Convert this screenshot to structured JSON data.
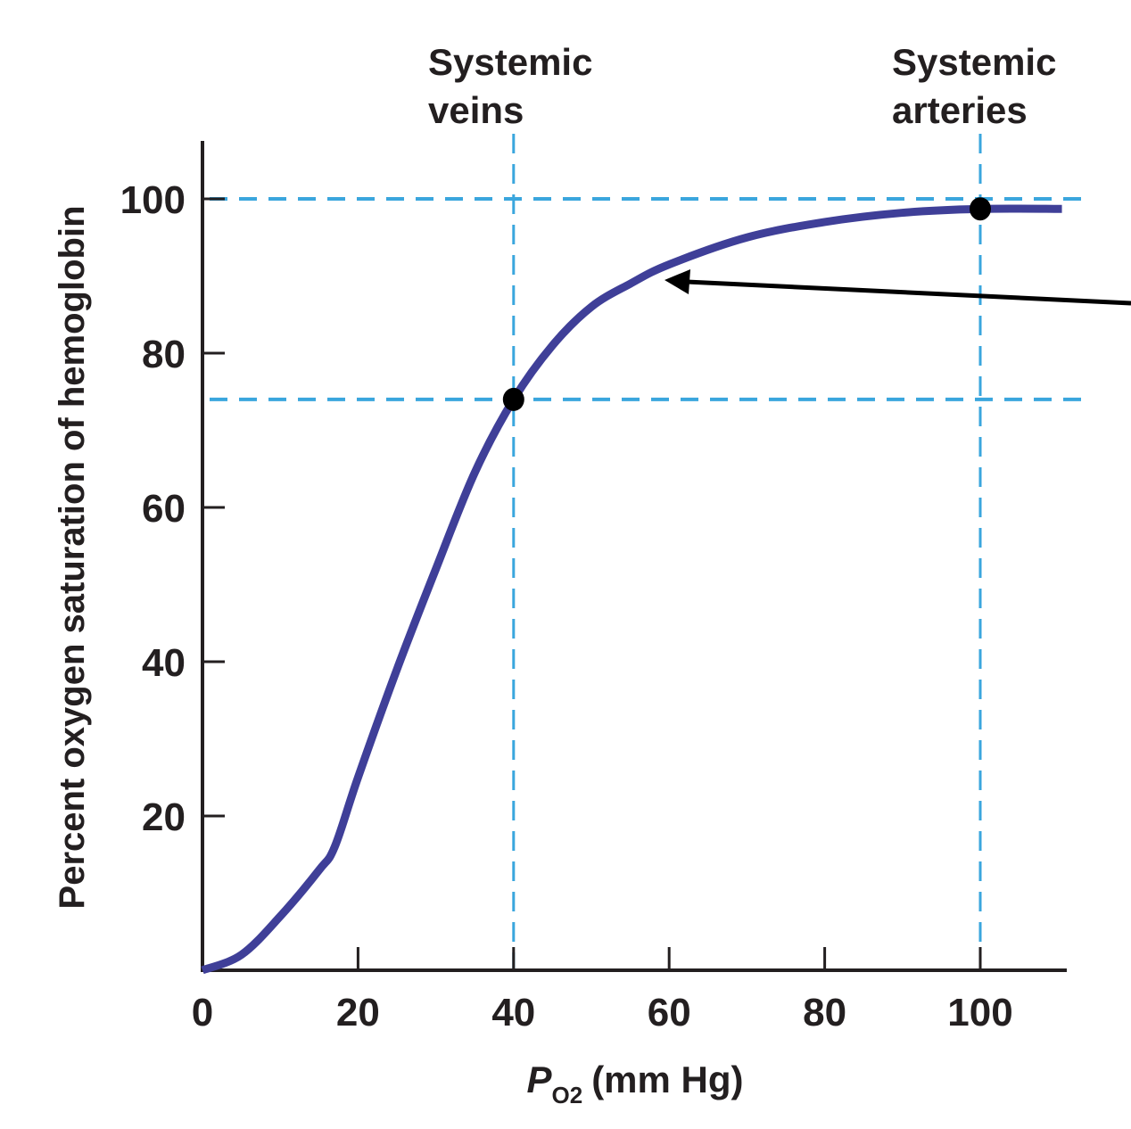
{
  "chart_data": {
    "type": "line",
    "title": "",
    "xlabel": {
      "main": "P",
      "sub": "O2",
      "unit": "(mm Hg)"
    },
    "ylabel": "Percent oxygen saturation of hemoglobin",
    "xlim": [
      0,
      111
    ],
    "ylim": [
      0,
      107
    ],
    "xticks": [
      0,
      20,
      40,
      60,
      80,
      100
    ],
    "yticks": [
      20,
      40,
      60,
      80,
      100
    ],
    "xtick_labels": [
      "0",
      "20",
      "40",
      "60",
      "80",
      "100"
    ],
    "ytick_labels": [
      "20",
      "40",
      "60",
      "80",
      "100"
    ],
    "grid": false,
    "series": [
      {
        "x": [
          0,
          5,
          10,
          15,
          17,
          20,
          25,
          30,
          35,
          40,
          45,
          50,
          55,
          60,
          70,
          80,
          90,
          100,
          110.5
        ],
        "y": [
          0,
          2,
          7,
          13,
          16,
          25,
          39,
          52,
          64.5,
          74,
          81,
          86,
          89,
          91.5,
          95,
          97,
          98.2,
          98.7,
          98.7
        ],
        "color": "#3f3f98"
      }
    ],
    "points": [
      {
        "x": 40,
        "y": 74,
        "label": "Systemic veins"
      },
      {
        "x": 100,
        "y": 98.7,
        "label": "Systemic arteries"
      }
    ],
    "reference_lines": {
      "vertical": [
        40,
        100
      ],
      "horizontal": [
        100,
        74
      ],
      "color": "#3aa6dd"
    },
    "annotations": {
      "veins": [
        "Systemic",
        "veins"
      ],
      "arteries": [
        "Systemic",
        "arteries"
      ],
      "arrow_target": {
        "x": 59,
        "y": 89.5
      }
    }
  }
}
